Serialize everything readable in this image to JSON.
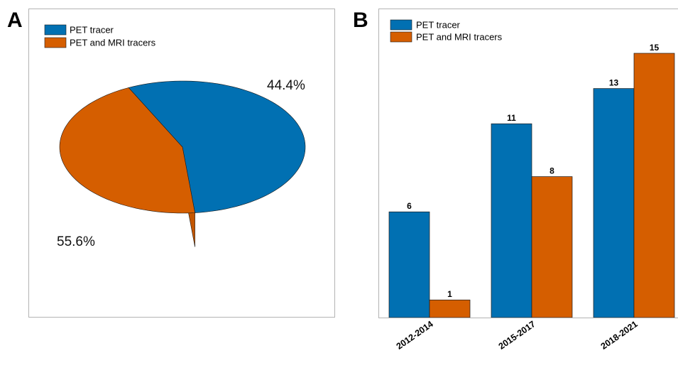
{
  "panels": {
    "a_letter": "A",
    "b_letter": "B"
  },
  "colors": {
    "pet": "#0170b2",
    "pet_mri": "#d55e00",
    "frame": "#b3b3b3",
    "edge": "#1a1a1a"
  },
  "chart_data": [
    {
      "type": "pie",
      "title": "",
      "labels": [
        "PET tracer",
        "PET and MRI tracers"
      ],
      "values": [
        55.6,
        44.4
      ],
      "value_labels": [
        "55.6%",
        "44.4%"
      ],
      "legend_position": "top-left"
    },
    {
      "type": "bar",
      "title": "",
      "xlabel": "",
      "ylabel": "",
      "categories": [
        "2012-2014",
        "2015-2017",
        "2018-2021"
      ],
      "series": [
        {
          "name": "PET tracer",
          "values": [
            6,
            11,
            13
          ]
        },
        {
          "name": "PET and MRI tracers",
          "values": [
            1,
            8,
            15
          ]
        }
      ],
      "ylim": [
        0,
        15
      ],
      "grid": false,
      "legend_position": "top-left"
    }
  ]
}
